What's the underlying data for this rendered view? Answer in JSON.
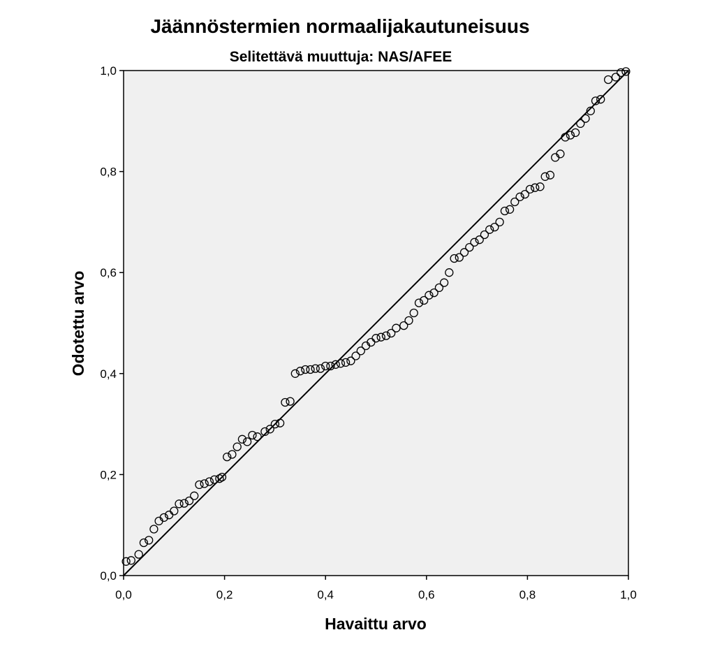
{
  "chart_data": {
    "type": "scatter",
    "title": "Jäännöstermien normaalijakautuneisuus",
    "subtitle": "Selitettävä muuttuja: NAS/AFEE",
    "xlabel": "Havaittu arvo",
    "ylabel": "Odotettu arvo",
    "xlim": [
      0,
      1
    ],
    "ylim": [
      0,
      1
    ],
    "xticks": [
      "0,0",
      "0,2",
      "0,4",
      "0,6",
      "0,8",
      "1,0"
    ],
    "yticks": [
      "0,0",
      "0,2",
      "0,4",
      "0,6",
      "0,8",
      "1,0"
    ],
    "grid": false,
    "reference_line": {
      "from": [
        0,
        0
      ],
      "to": [
        1,
        1
      ]
    },
    "point_color": "#000000",
    "background_color": "#f0f0f0",
    "points": [
      [
        0.005,
        0.028
      ],
      [
        0.015,
        0.03
      ],
      [
        0.03,
        0.042
      ],
      [
        0.04,
        0.065
      ],
      [
        0.05,
        0.07
      ],
      [
        0.06,
        0.092
      ],
      [
        0.07,
        0.108
      ],
      [
        0.08,
        0.115
      ],
      [
        0.09,
        0.12
      ],
      [
        0.1,
        0.128
      ],
      [
        0.11,
        0.142
      ],
      [
        0.12,
        0.143
      ],
      [
        0.13,
        0.148
      ],
      [
        0.14,
        0.158
      ],
      [
        0.15,
        0.18
      ],
      [
        0.16,
        0.182
      ],
      [
        0.17,
        0.186
      ],
      [
        0.18,
        0.19
      ],
      [
        0.19,
        0.192
      ],
      [
        0.195,
        0.195
      ],
      [
        0.205,
        0.235
      ],
      [
        0.215,
        0.24
      ],
      [
        0.225,
        0.255
      ],
      [
        0.235,
        0.27
      ],
      [
        0.245,
        0.265
      ],
      [
        0.255,
        0.278
      ],
      [
        0.265,
        0.275
      ],
      [
        0.28,
        0.285
      ],
      [
        0.29,
        0.29
      ],
      [
        0.3,
        0.3
      ],
      [
        0.31,
        0.302
      ],
      [
        0.32,
        0.343
      ],
      [
        0.33,
        0.345
      ],
      [
        0.34,
        0.4
      ],
      [
        0.35,
        0.405
      ],
      [
        0.36,
        0.408
      ],
      [
        0.37,
        0.408
      ],
      [
        0.38,
        0.41
      ],
      [
        0.39,
        0.41
      ],
      [
        0.4,
        0.415
      ],
      [
        0.41,
        0.415
      ],
      [
        0.42,
        0.418
      ],
      [
        0.43,
        0.42
      ],
      [
        0.44,
        0.422
      ],
      [
        0.45,
        0.425
      ],
      [
        0.46,
        0.435
      ],
      [
        0.47,
        0.445
      ],
      [
        0.48,
        0.455
      ],
      [
        0.49,
        0.462
      ],
      [
        0.5,
        0.47
      ],
      [
        0.51,
        0.472
      ],
      [
        0.52,
        0.475
      ],
      [
        0.53,
        0.48
      ],
      [
        0.54,
        0.49
      ],
      [
        0.555,
        0.495
      ],
      [
        0.565,
        0.505
      ],
      [
        0.575,
        0.52
      ],
      [
        0.585,
        0.54
      ],
      [
        0.595,
        0.545
      ],
      [
        0.605,
        0.555
      ],
      [
        0.615,
        0.56
      ],
      [
        0.625,
        0.57
      ],
      [
        0.635,
        0.58
      ],
      [
        0.645,
        0.6
      ],
      [
        0.655,
        0.628
      ],
      [
        0.665,
        0.63
      ],
      [
        0.675,
        0.64
      ],
      [
        0.685,
        0.65
      ],
      [
        0.695,
        0.66
      ],
      [
        0.705,
        0.665
      ],
      [
        0.715,
        0.675
      ],
      [
        0.725,
        0.685
      ],
      [
        0.735,
        0.69
      ],
      [
        0.745,
        0.7
      ],
      [
        0.755,
        0.722
      ],
      [
        0.765,
        0.725
      ],
      [
        0.775,
        0.74
      ],
      [
        0.785,
        0.75
      ],
      [
        0.795,
        0.755
      ],
      [
        0.805,
        0.765
      ],
      [
        0.815,
        0.768
      ],
      [
        0.825,
        0.77
      ],
      [
        0.835,
        0.79
      ],
      [
        0.845,
        0.793
      ],
      [
        0.855,
        0.828
      ],
      [
        0.865,
        0.835
      ],
      [
        0.875,
        0.868
      ],
      [
        0.885,
        0.872
      ],
      [
        0.895,
        0.877
      ],
      [
        0.905,
        0.895
      ],
      [
        0.915,
        0.905
      ],
      [
        0.925,
        0.92
      ],
      [
        0.935,
        0.94
      ],
      [
        0.945,
        0.943
      ],
      [
        0.96,
        0.982
      ],
      [
        0.975,
        0.987
      ],
      [
        0.985,
        0.996
      ],
      [
        0.995,
        0.998
      ]
    ]
  }
}
